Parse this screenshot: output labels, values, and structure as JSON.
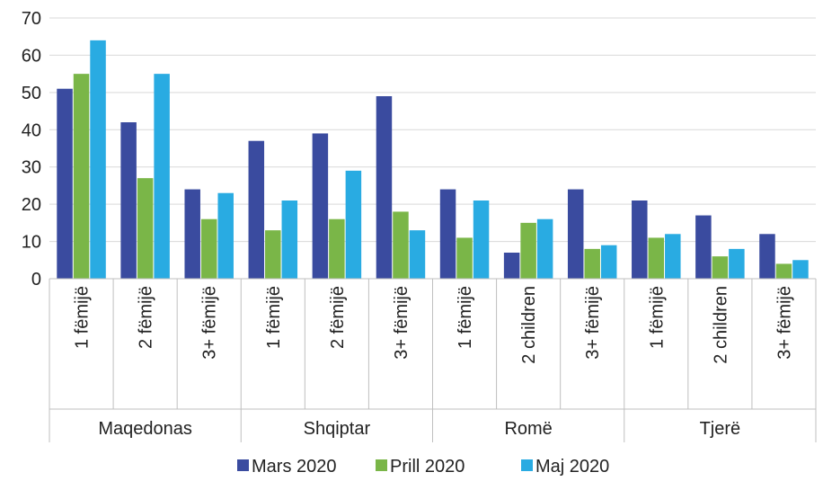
{
  "chart_data": {
    "type": "bar",
    "title": "",
    "xlabel": "",
    "ylabel": "",
    "ylim": [
      0,
      70
    ],
    "yticks": [
      0,
      10,
      20,
      30,
      40,
      50,
      60,
      70
    ],
    "grid": true,
    "legend_position": "bottom",
    "groups": [
      {
        "name": "Maqedonas",
        "categories": [
          "1 fëmijë",
          "2 fëmijë",
          "3+ fëmijë"
        ]
      },
      {
        "name": "Shqiptar",
        "categories": [
          "1 fëmijë",
          "2 fëmijë",
          "3+ fëmijë"
        ]
      },
      {
        "name": "Romë",
        "categories": [
          "1 fëmijë",
          "2 children",
          "3+ fëmijë"
        ]
      },
      {
        "name": "Tjerë",
        "categories": [
          "1 fëmijë",
          "2 children",
          "3+ fëmijë"
        ]
      }
    ],
    "series": [
      {
        "name": "Mars 2020",
        "color": "#3a4b9f",
        "values": [
          51,
          42,
          24,
          37,
          39,
          49,
          24,
          7,
          24,
          21,
          17,
          12
        ]
      },
      {
        "name": "Prill 2020",
        "color": "#7ab648",
        "values": [
          55,
          27,
          16,
          13,
          16,
          18,
          11,
          15,
          8,
          11,
          6,
          4
        ]
      },
      {
        "name": "Maj 2020",
        "color": "#29abe2",
        "values": [
          64,
          55,
          23,
          21,
          29,
          13,
          21,
          16,
          9,
          12,
          8,
          5
        ]
      }
    ]
  }
}
